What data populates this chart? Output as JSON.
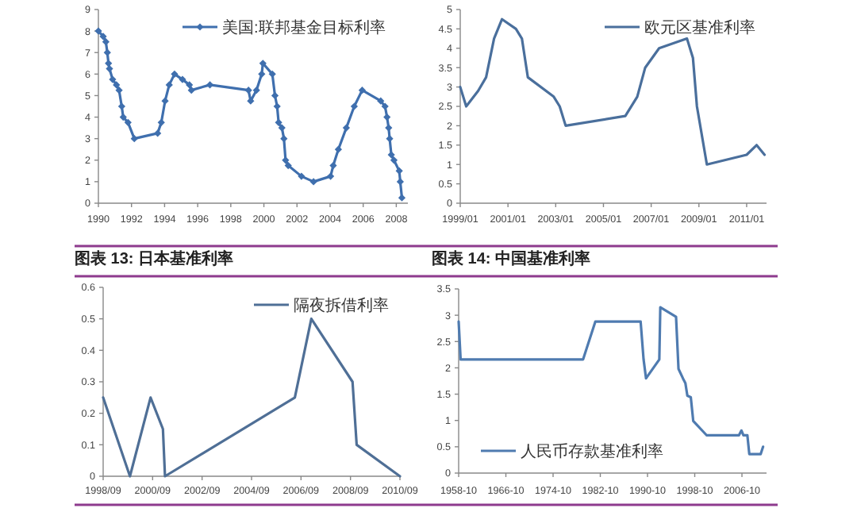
{
  "chart_data": [
    {
      "type": "line",
      "legend": "top right",
      "marker": "diamond",
      "xlim": [
        1990,
        2008.7
      ],
      "ylim": [
        0,
        9
      ],
      "xticks": [
        1990,
        1992,
        1994,
        1996,
        1998,
        2000,
        2002,
        2004,
        2006,
        2008
      ],
      "yticks": [
        0,
        1,
        2,
        3,
        4,
        5,
        6,
        7,
        8,
        9
      ],
      "series": [
        {
          "name": "美国:联邦基金目标利率",
          "color": "#3f6fae",
          "x": [
            1990.0,
            1990.29,
            1990.45,
            1990.54,
            1990.61,
            1990.67,
            1990.86,
            1991.09,
            1991.25,
            1991.41,
            1991.5,
            1991.79,
            1992.17,
            1993.58,
            1993.8,
            1994.03,
            1994.28,
            1994.6,
            1995.08,
            1995.5,
            1995.62,
            1996.74,
            1999.07,
            1999.2,
            1999.55,
            1999.87,
            1999.94,
            2000.51,
            2000.67,
            2000.8,
            2000.89,
            2001.09,
            2001.21,
            2001.31,
            2001.47,
            2002.27,
            2003.0,
            2004.03,
            2004.19,
            2004.5,
            2004.98,
            2005.46,
            2005.94,
            2007.06,
            2007.32,
            2007.44,
            2007.54,
            2007.6,
            2007.7,
            2007.86,
            2008.18,
            2008.24,
            2008.34
          ],
          "values": [
            8.0,
            7.75,
            7.5,
            7.0,
            6.5,
            6.25,
            5.75,
            5.5,
            5.25,
            4.5,
            4.0,
            3.75,
            3.0,
            3.25,
            3.75,
            4.75,
            5.5,
            6.0,
            5.75,
            5.5,
            5.25,
            5.5,
            5.25,
            4.75,
            5.25,
            6.0,
            6.5,
            6.0,
            5.0,
            4.5,
            3.75,
            3.5,
            3.0,
            2.0,
            1.75,
            1.25,
            1.0,
            1.25,
            1.75,
            2.5,
            3.5,
            4.5,
            5.25,
            4.75,
            4.5,
            4.0,
            3.5,
            3.0,
            2.25,
            2.0,
            1.5,
            1.0,
            0.25
          ]
        }
      ]
    },
    {
      "type": "line",
      "legend": "top right",
      "xlim": [
        "1999-01",
        "2011-11"
      ],
      "ylim": [
        0,
        5
      ],
      "xticks": [
        {
          "value": "1999-01",
          "label": "1999/01"
        },
        {
          "value": "2001-01",
          "label": "2001/01"
        },
        {
          "value": "2003-01",
          "label": "2003/01"
        },
        {
          "value": "2005-01",
          "label": "2005/01"
        },
        {
          "value": "2007-01",
          "label": "2007/01"
        },
        {
          "value": "2009-01",
          "label": "2009/01"
        },
        {
          "value": "2011-01",
          "label": "2011/01"
        }
      ],
      "yticks": [
        0,
        0.5,
        1,
        1.5,
        2,
        2.5,
        3,
        3.5,
        4,
        4.5,
        5
      ],
      "series": [
        {
          "name": "欧元区基准利率",
          "color": "#4a6f9c",
          "x": [
            "1999-01",
            "1999-04",
            "1999-10",
            "2000-02",
            "2000-06",
            "2000-10",
            "2001-05",
            "2001-08",
            "2001-11",
            "2002-12",
            "2003-03",
            "2003-06",
            "2005-12",
            "2006-06",
            "2006-10",
            "2007-05",
            "2008-07",
            "2008-10",
            "2008-12",
            "2009-05",
            "2011-01",
            "2011-06",
            "2011-10"
          ],
          "values": [
            3.0,
            2.5,
            2.9,
            3.25,
            4.25,
            4.75,
            4.5,
            4.25,
            3.25,
            2.75,
            2.5,
            2.0,
            2.25,
            2.75,
            3.5,
            4.0,
            4.25,
            3.75,
            2.5,
            1.0,
            1.25,
            1.5,
            1.25
          ]
        }
      ]
    },
    {
      "type": "line",
      "title": "图表 13:  日本基准利率",
      "legend": "top right",
      "xlim": [
        "1998-09",
        "2010-09"
      ],
      "ylim": [
        0,
        0.6
      ],
      "xticks": [
        {
          "value": "1998-09",
          "label": "1998/09"
        },
        {
          "value": "2000-09",
          "label": "2000/09"
        },
        {
          "value": "2002-09",
          "label": "2002/09"
        },
        {
          "value": "2004-09",
          "label": "2004/09"
        },
        {
          "value": "2006-09",
          "label": "2006/09"
        },
        {
          "value": "2008-09",
          "label": "2008/09"
        },
        {
          "value": "2010-09",
          "label": "2010/09"
        }
      ],
      "yticks": [
        0,
        0.1,
        0.2,
        0.3,
        0.4,
        0.5,
        0.6
      ],
      "series": [
        {
          "name": "隔夜拆借利率",
          "color": "#4f6f96",
          "x": [
            "1998-09",
            "1999-10",
            "2000-08",
            "2001-02",
            "2001-03",
            "2006-06",
            "2007-02",
            "2008-10",
            "2008-12",
            "2010-09"
          ],
          "values": [
            0.25,
            0.0,
            0.25,
            0.15,
            0.0,
            0.25,
            0.5,
            0.3,
            0.1,
            0.0
          ]
        }
      ]
    },
    {
      "type": "line",
      "title": "图表 14:  中国基准利率",
      "legend": "bottom left",
      "xlim": [
        "1958-10",
        "2010-12"
      ],
      "ylim": [
        0,
        3.5
      ],
      "xticks": [
        {
          "value": "1958-10",
          "label": "1958-10"
        },
        {
          "value": "1966-10",
          "label": "1966-10"
        },
        {
          "value": "1974-10",
          "label": "1974-10"
        },
        {
          "value": "1982-10",
          "label": "1982-10"
        },
        {
          "value": "1990-10",
          "label": "1990-10"
        },
        {
          "value": "1998-10",
          "label": "1998-10"
        },
        {
          "value": "2006-10",
          "label": "2006-10"
        }
      ],
      "yticks": [
        0,
        0.5,
        1,
        1.5,
        2,
        2.5,
        3,
        3.5
      ],
      "series": [
        {
          "name": "人民币存款基准利率",
          "color": "#4f7bb0",
          "x": [
            "1958-10",
            "1959-02",
            "1979-11",
            "1981-12",
            "1989-08",
            "1990-02",
            "1990-07",
            "1992-10",
            "1992-12",
            "1995-08",
            "1996-01",
            "1996-10",
            "1997-03",
            "1997-07",
            "1998-02",
            "1998-07",
            "2000-10",
            "2006-04",
            "2006-09",
            "2007-01",
            "2007-09",
            "2008-01",
            "2009-12",
            "2010-05"
          ],
          "values": [
            2.88,
            2.16,
            2.16,
            2.88,
            2.88,
            2.16,
            1.8,
            2.16,
            3.15,
            2.97,
            1.98,
            1.8,
            1.71,
            1.47,
            1.44,
            0.99,
            0.72,
            0.72,
            0.81,
            0.72,
            0.72,
            0.36,
            0.36,
            0.5
          ]
        }
      ]
    }
  ]
}
